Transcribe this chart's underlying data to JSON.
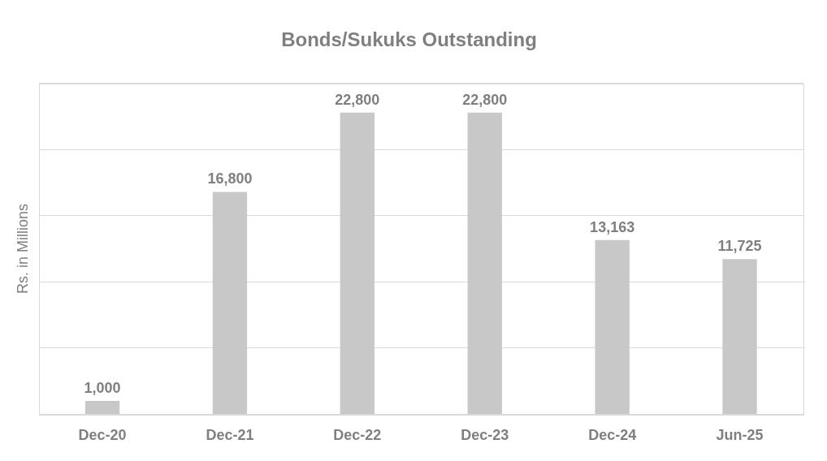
{
  "chart_data": {
    "type": "bar",
    "title": "Bonds/Sukuks Outstanding",
    "ylabel": "Rs. in Millions",
    "categories": [
      "Dec-20",
      "Dec-21",
      "Dec-22",
      "Dec-23",
      "Dec-24",
      "Jun-25"
    ],
    "values": [
      1000,
      16800,
      22800,
      22800,
      13163,
      11725
    ],
    "color": "#c8c8c8",
    "value_labels": [
      "1,000",
      "16,800",
      "22,800",
      "22,800",
      "13,163",
      "11,725"
    ],
    "grid": "y",
    "tick_labels": "x",
    "legend": false
  }
}
